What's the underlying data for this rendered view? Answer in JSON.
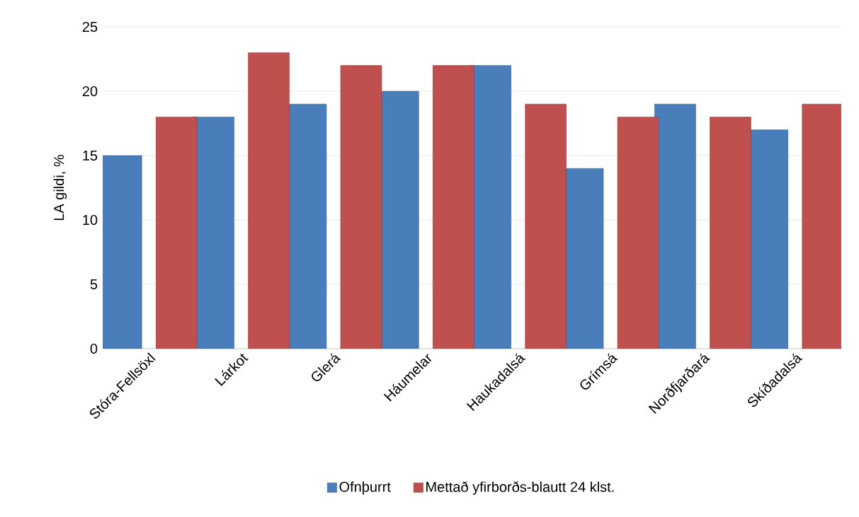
{
  "chart_data": {
    "type": "bar",
    "ylabel": "LA gildi, %",
    "categories": [
      "Stóra-Fellsöxl",
      "Lárkot",
      "Glerá",
      "Háumelar",
      "Haukadalsá",
      "Grímsá",
      "Norðfjarðará",
      "Skíðadalsá"
    ],
    "series": [
      {
        "name": "Ofnþurrt",
        "color": "#4a7ebb",
        "values": [
          15,
          18,
          19,
          20,
          22,
          14,
          19,
          17
        ]
      },
      {
        "name": "Mettað yfirborðs-blautt 24 klst.",
        "color": "#c0504d",
        "values": [
          18,
          23,
          22,
          22,
          19,
          18,
          18,
          19
        ]
      }
    ],
    "ylim": [
      0,
      25
    ],
    "yticks": [
      0,
      5,
      10,
      15,
      20,
      25
    ],
    "grid": "y",
    "legend": "bottom"
  }
}
